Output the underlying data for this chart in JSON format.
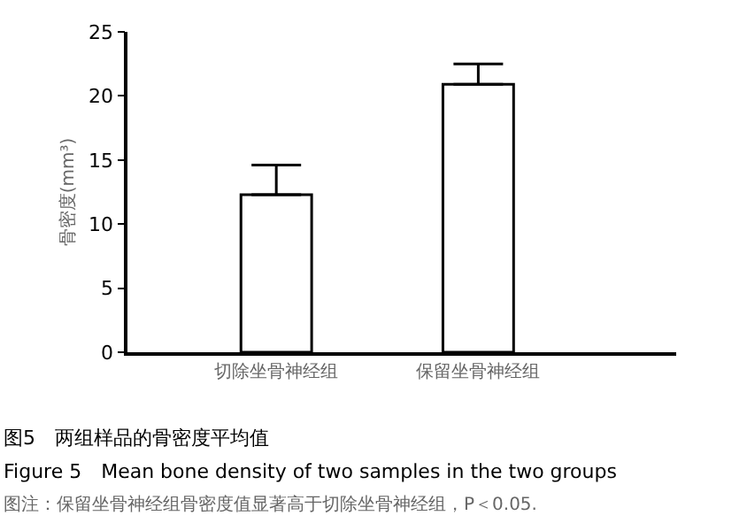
{
  "chart_data": {
    "type": "bar",
    "title": "图5　两组样品的骨密度平均值",
    "subtitle": "Figure 5　Mean bone density of two samples in the two groups",
    "annotations": [
      "图注：保留坐骨神经组骨密度值显著高于切除坐骨神经组，P＜0.05."
    ],
    "ylabel": "骨密度(mm³)",
    "categories": [
      "切除坐骨神经组",
      "保留坐骨神经组"
    ],
    "values": [
      12.3,
      20.9
    ],
    "errors": [
      [
        12.3,
        14.6
      ],
      [
        20.9,
        22.5
      ]
    ],
    "color": "#ffffff",
    "ylim": [
      0,
      25
    ],
    "yticks": [
      0,
      5,
      10,
      15,
      20,
      25
    ],
    "legend": false
  }
}
